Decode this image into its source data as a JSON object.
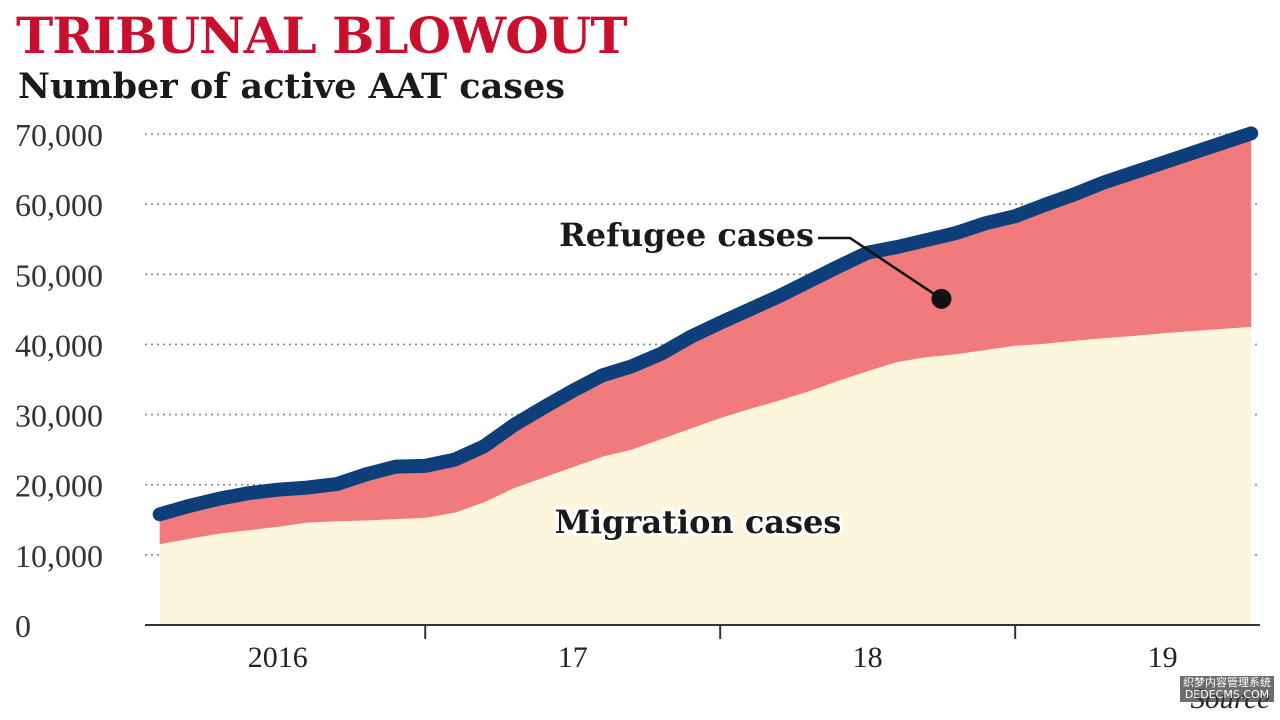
{
  "header": {
    "title": "TRIBUNAL BLOWOUT",
    "subtitle": "Number of active AAT cases"
  },
  "source_text": "Source",
  "watermark": [
    "织梦内容管理系统",
    "DEDECMS.COM"
  ],
  "colors": {
    "title": "#c8102e",
    "total_line": "#0e3f7a",
    "refugee_area": "#f07a7c",
    "migration_area": "#fdf5dc",
    "gridline": "#888888"
  },
  "chart_data": {
    "type": "area",
    "title": "TRIBUNAL BLOWOUT",
    "subtitle": "Number of active AAT cases",
    "x_tick_labels": [
      "2016",
      "17",
      "18",
      "19"
    ],
    "x_tick_positions": [
      2016.0,
      2017.0,
      2018.0,
      2019.0
    ],
    "y_tick_labels": [
      "0",
      "10,000",
      "20,000",
      "30,000",
      "40,000",
      "50,000",
      "60,000",
      "70,000"
    ],
    "ylim": [
      0,
      70000
    ],
    "xlim": [
      2015.55,
      2019.33
    ],
    "grid": true,
    "x": [
      2015.6,
      2015.7,
      2015.8,
      2015.9,
      2016.0,
      2016.1,
      2016.2,
      2016.3,
      2016.4,
      2016.5,
      2016.6,
      2016.7,
      2016.8,
      2016.9,
      2017.0,
      2017.1,
      2017.2,
      2017.3,
      2017.4,
      2017.5,
      2017.6,
      2017.7,
      2017.8,
      2017.9,
      2018.0,
      2018.1,
      2018.2,
      2018.3,
      2018.4,
      2018.5,
      2018.6,
      2018.7,
      2018.8,
      2018.9,
      2019.0,
      2019.1,
      2019.2,
      2019.3
    ],
    "series": [
      {
        "name": "Migration cases",
        "values": [
          11500,
          12300,
          13000,
          13500,
          14000,
          14600,
          14800,
          14900,
          15100,
          15300,
          16000,
          17500,
          19500,
          21000,
          22500,
          24000,
          25000,
          26500,
          28000,
          29500,
          30800,
          32000,
          33300,
          34800,
          36200,
          37500,
          38200,
          38600,
          39200,
          39800,
          40100,
          40500,
          40900,
          41200,
          41600,
          41900,
          42200,
          42500
        ]
      },
      {
        "name": "Refugee cases",
        "values": [
          15500,
          16700,
          17700,
          18500,
          19000,
          19300,
          19800,
          21200,
          22300,
          22400,
          23300,
          25200,
          28200,
          30700,
          33100,
          35300,
          36600,
          38400,
          40800,
          42800,
          44700,
          46600,
          48700,
          50800,
          52800,
          53600,
          54600,
          55600,
          57000,
          58000,
          59600,
          61100,
          62800,
          64200,
          65600,
          67000,
          68400,
          69800
        ]
      }
    ],
    "annotations": [
      "Refugee cases",
      "Migration cases"
    ]
  }
}
